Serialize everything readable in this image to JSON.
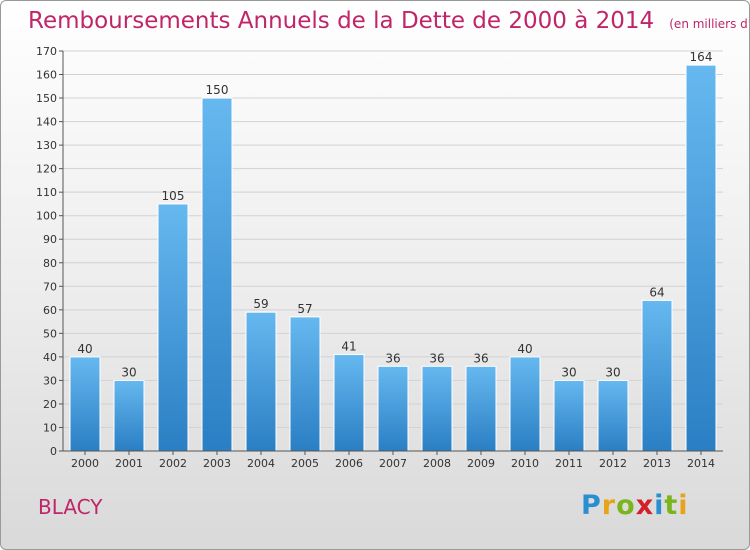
{
  "header": {
    "title": "Remboursements Annuels de la Dette de 2000 à 2014",
    "unit": "(en milliers d'€)"
  },
  "footer": {
    "commune": "BLACY",
    "logo": "Proxiti"
  },
  "colors": {
    "bar_top": "#66b8ef",
    "bar_bottom": "#2a7fc4",
    "title": "#c0256a"
  },
  "chart_data": {
    "type": "bar",
    "title": "Remboursements Annuels de la Dette de 2000 à 2014",
    "subtitle": "(en milliers d'€)",
    "categories": [
      "2000",
      "2001",
      "2002",
      "2003",
      "2004",
      "2005",
      "2006",
      "2007",
      "2008",
      "2009",
      "2010",
      "2011",
      "2012",
      "2013",
      "2014"
    ],
    "values": [
      40,
      30,
      105,
      150,
      59,
      57,
      41,
      36,
      36,
      36,
      40,
      30,
      30,
      64,
      164
    ],
    "ylim": [
      0,
      170
    ],
    "yticks": [
      0,
      10,
      20,
      30,
      40,
      50,
      60,
      70,
      80,
      90,
      100,
      110,
      120,
      130,
      140,
      150,
      160,
      170
    ],
    "grid": true,
    "legend": "none"
  }
}
